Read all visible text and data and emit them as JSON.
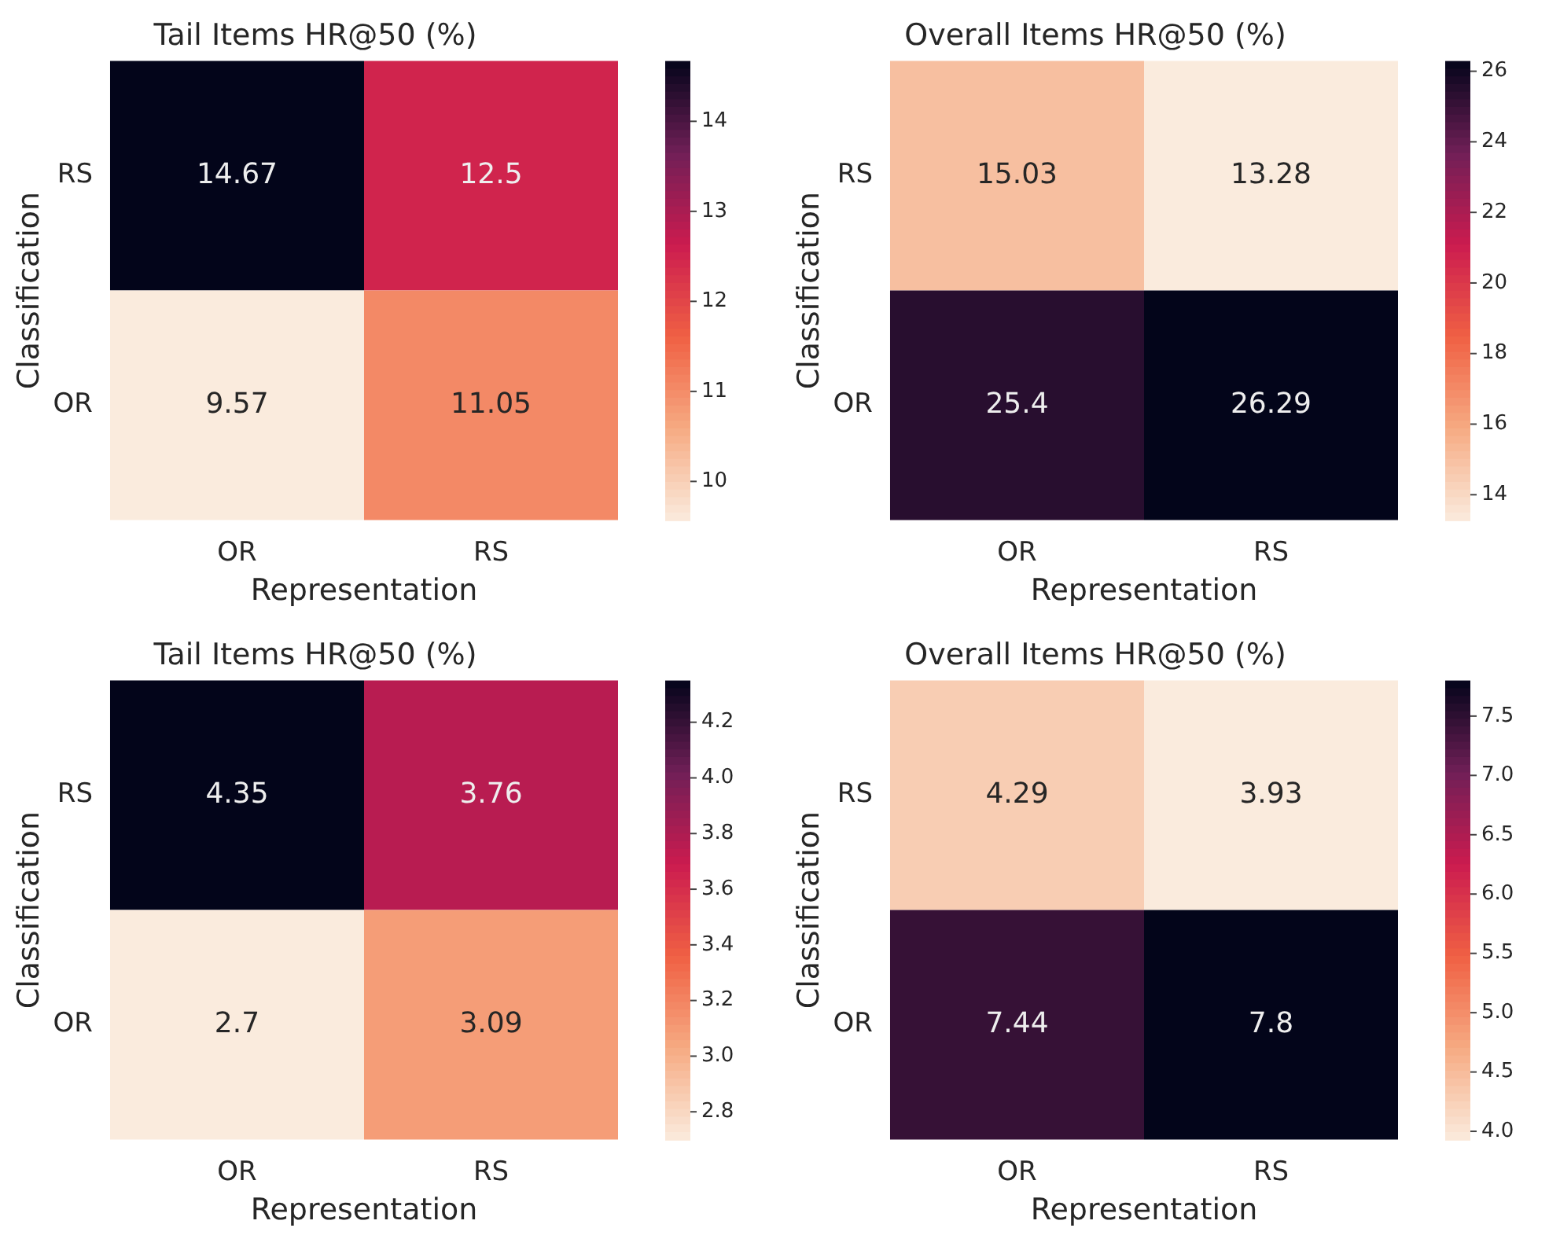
{
  "chart_data": [
    {
      "type": "heatmap",
      "title": "Tail Items HR@50 (%)",
      "xlabel": "Representation",
      "ylabel": "Classification",
      "categories": [
        "OR",
        "RS"
      ],
      "y_categories": [
        "RS",
        "OR"
      ],
      "cells": [
        [
          14.67,
          12.5
        ],
        [
          9.57,
          11.05
        ]
      ],
      "data_labels": true,
      "clim": [
        9.57,
        14.67
      ],
      "cticks": [
        10,
        11,
        12,
        13,
        14
      ]
    },
    {
      "type": "heatmap",
      "title": "Overall Items HR@50 (%)",
      "xlabel": "Representation",
      "ylabel": "Classification",
      "categories": [
        "OR",
        "RS"
      ],
      "y_categories": [
        "RS",
        "OR"
      ],
      "cells": [
        [
          15.03,
          13.28
        ],
        [
          25.4,
          26.29
        ]
      ],
      "data_labels": true,
      "clim": [
        13.28,
        26.29
      ],
      "cticks": [
        14,
        16,
        18,
        20,
        22,
        24,
        26
      ]
    },
    {
      "type": "heatmap",
      "title": "Tail Items HR@50 (%)",
      "xlabel": "Representation",
      "ylabel": "Classification",
      "categories": [
        "OR",
        "RS"
      ],
      "y_categories": [
        "RS",
        "OR"
      ],
      "cells": [
        [
          4.35,
          3.76
        ],
        [
          2.7,
          3.09
        ]
      ],
      "data_labels": true,
      "clim": [
        2.7,
        4.35
      ],
      "cticks": [
        {
          "value": 2.8,
          "label": "2.8"
        },
        {
          "value": 3.0,
          "label": "3.0"
        },
        {
          "value": 3.2,
          "label": "3.2"
        },
        {
          "value": 3.4,
          "label": "3.4"
        },
        {
          "value": 3.6,
          "label": "3.6"
        },
        {
          "value": 3.8,
          "label": "3.8"
        },
        {
          "value": 4.0,
          "label": "4.0"
        },
        {
          "value": 4.2,
          "label": "4.2"
        }
      ]
    },
    {
      "type": "heatmap",
      "title": "Overall Items HR@50 (%)",
      "xlabel": "Representation",
      "ylabel": "Classification",
      "categories": [
        "OR",
        "RS"
      ],
      "y_categories": [
        "RS",
        "OR"
      ],
      "cells": [
        [
          4.29,
          3.93
        ],
        [
          7.44,
          7.8
        ]
      ],
      "data_labels": true,
      "clim": [
        3.93,
        7.8
      ],
      "cticks": [
        {
          "value": 4.0,
          "label": "4.0"
        },
        {
          "value": 4.5,
          "label": "4.5"
        },
        {
          "value": 5.0,
          "label": "5.0"
        },
        {
          "value": 5.5,
          "label": "5.5"
        },
        {
          "value": 6.0,
          "label": "6.0"
        },
        {
          "value": 6.5,
          "label": "6.5"
        },
        {
          "value": 7.0,
          "label": "7.0"
        },
        {
          "value": 7.5,
          "label": "7.5"
        }
      ]
    }
  ]
}
